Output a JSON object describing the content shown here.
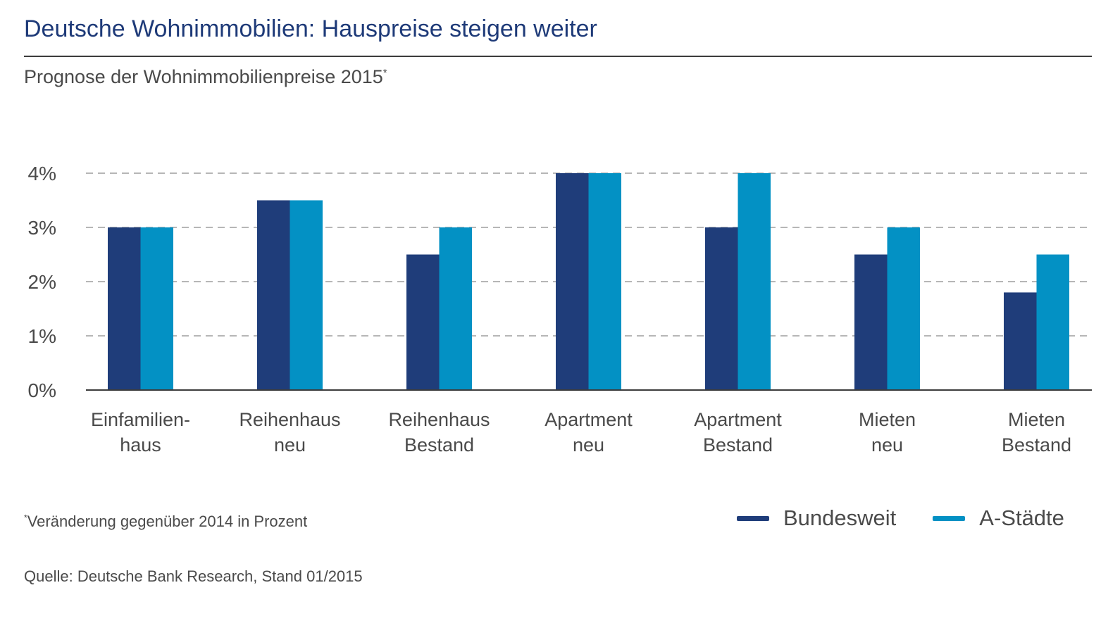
{
  "title": "Deutsche Wohnimmobilien: Hauspreise steigen weiter",
  "subtitle": "Prognose der Wohnimmobilienpreise 2015",
  "subtitle_mark": "*",
  "footnote_mark": "*",
  "footnote": "Veränderung gegenüber 2014 in Prozent",
  "source": "Quelle: Deutsche Bank Research, Stand 01/2015",
  "colors": {
    "title": "#1e3a78",
    "bundesweit": "#1f3d7a",
    "a_staedte": "#0391c4",
    "grid": "#8a8a8a",
    "text": "#4a4a4a"
  },
  "chart_data": {
    "type": "bar",
    "title": "Deutsche Wohnimmobilien: Hauspreise steigen weiter",
    "subtitle": "Prognose der Wohnimmobilienpreise 2015*",
    "categories": [
      [
        "Einfamilien-",
        "haus"
      ],
      [
        "Reihenhaus",
        "neu"
      ],
      [
        "Reihenhaus",
        "Bestand"
      ],
      [
        "Apartment",
        "neu"
      ],
      [
        "Apartment",
        "Bestand"
      ],
      [
        "Mieten",
        "neu"
      ],
      [
        "Mieten",
        "Bestand"
      ]
    ],
    "series": [
      {
        "name": "Bundesweit",
        "color": "#1f3d7a",
        "values": [
          3.0,
          3.5,
          2.5,
          4.0,
          3.0,
          2.5,
          1.8
        ]
      },
      {
        "name": "A-Städte",
        "color": "#0391c4",
        "values": [
          3.0,
          3.5,
          3.0,
          4.0,
          4.0,
          3.0,
          2.5
        ]
      }
    ],
    "y_ticks": [
      "0%",
      "1%",
      "2%",
      "3%",
      "4%"
    ],
    "ylim": [
      0,
      4
    ],
    "grid": true,
    "grid_style": "dashed",
    "legend_position": "bottom-right"
  }
}
